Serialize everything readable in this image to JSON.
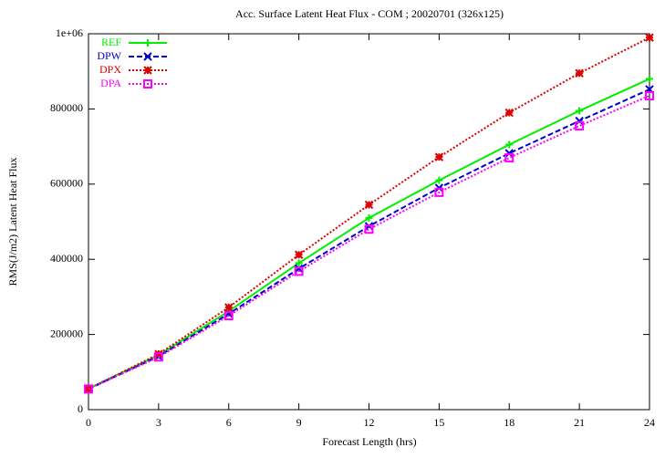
{
  "chart_data": {
    "type": "line",
    "title": "Acc. Surface Latent Heat Flux - COM ; 20020701 (326x125)",
    "x_label": "Forecast Length (hrs)",
    "y_label": "RMS(J/m2) Latent Heat Flux",
    "x": [
      0,
      3,
      6,
      9,
      12,
      15,
      18,
      21,
      24
    ],
    "xlim": [
      0,
      24
    ],
    "xticks": [
      0,
      3,
      6,
      9,
      12,
      15,
      18,
      21,
      24
    ],
    "ylim": [
      0,
      1000000
    ],
    "yticks": [
      0,
      200000,
      400000,
      600000,
      800000,
      {
        "value": 1000000,
        "label": "1e+06"
      }
    ],
    "legend": "top-left",
    "series": [
      {
        "name": "REF",
        "color": "#00ee00",
        "dash": "solid",
        "marker": "plus",
        "values": [
          56000,
          145000,
          262000,
          390000,
          510000,
          610000,
          705000,
          795000,
          880000
        ]
      },
      {
        "name": "DPW",
        "color": "#0000cc",
        "dash": "dashed",
        "marker": "cross",
        "values": [
          55000,
          142000,
          255000,
          375000,
          488000,
          590000,
          682000,
          768000,
          852000
        ]
      },
      {
        "name": "DPX",
        "color": "#dd0000",
        "dash": "dotted",
        "marker": "star",
        "values": [
          55000,
          148000,
          272000,
          412000,
          545000,
          672000,
          790000,
          895000,
          990000
        ]
      },
      {
        "name": "DPA",
        "color": "#ff00ff",
        "dash": "dotted",
        "marker": "square",
        "values": [
          55000,
          140000,
          250000,
          368000,
          480000,
          578000,
          670000,
          755000,
          835000
        ]
      }
    ]
  }
}
